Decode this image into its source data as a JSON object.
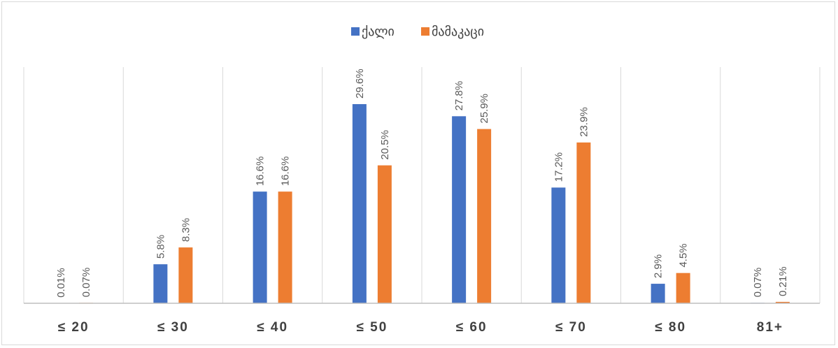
{
  "chart_data": {
    "type": "bar",
    "categories": [
      "≤ 20",
      "≤ 30",
      "≤ 40",
      "≤ 50",
      "≤ 60",
      "≤ 70",
      "≤ 80",
      "81+"
    ],
    "series": [
      {
        "name": "ქალი",
        "color": "#4472c4",
        "values": [
          0.01,
          5.8,
          16.6,
          29.6,
          27.8,
          17.2,
          2.9,
          0.07
        ],
        "labels": [
          "0.01%",
          "5.8%",
          "16.6%",
          "29.6%",
          "27.8%",
          "17.2%",
          "2.9%",
          "0.07%"
        ]
      },
      {
        "name": "მამაკაცი",
        "color": "#ed7d31",
        "values": [
          0.07,
          8.3,
          16.6,
          20.5,
          25.9,
          23.9,
          4.5,
          0.21
        ],
        "labels": [
          "0.07%",
          "8.3%",
          "16.6%",
          "20.5%",
          "25.9%",
          "23.9%",
          "4.5%",
          "0.21%"
        ]
      }
    ],
    "ylim": [
      0,
      35
    ],
    "legend": "top-center",
    "grid": "vertical category separators"
  }
}
